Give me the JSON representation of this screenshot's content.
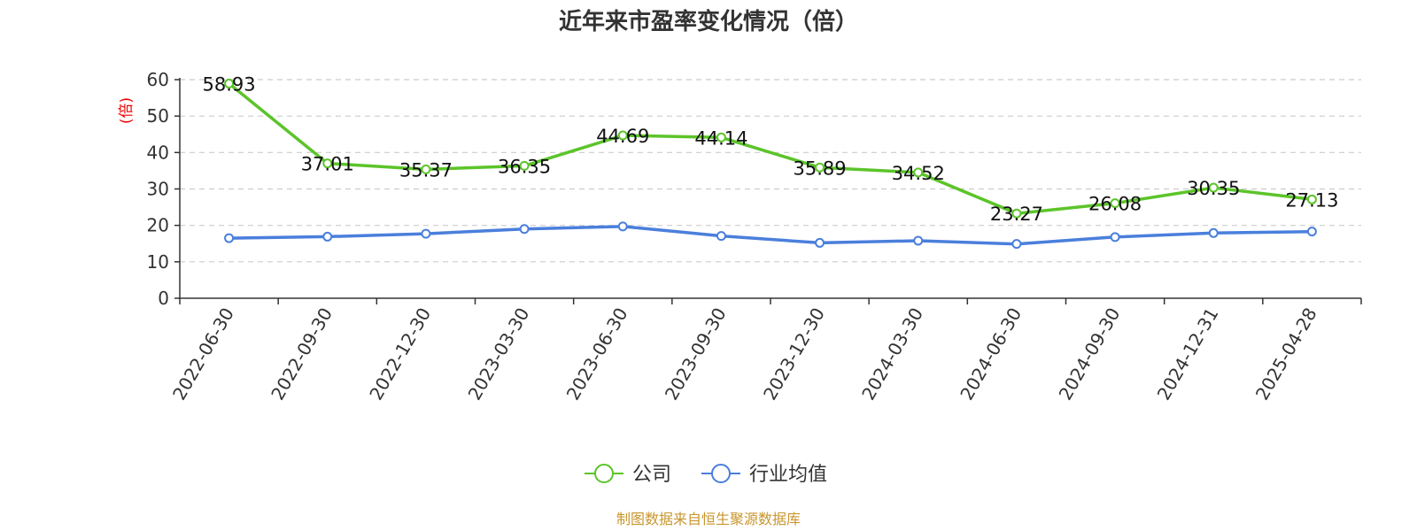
{
  "chart_data": {
    "type": "line",
    "title": "近年来市盈率变化情况（倍）",
    "ylabel": "(倍)",
    "ylim": [
      0,
      60
    ],
    "yticks": [
      0,
      10,
      20,
      30,
      40,
      50,
      60
    ],
    "grid": true,
    "legend_position": "bottom",
    "categories": [
      "2022-06-30",
      "2022-09-30",
      "2022-12-30",
      "2023-03-30",
      "2023-06-30",
      "2023-09-30",
      "2023-12-30",
      "2024-03-30",
      "2024-06-30",
      "2024-09-30",
      "2024-12-31",
      "2025-04-28"
    ],
    "series": [
      {
        "name": "公司",
        "color": "#5cc42a",
        "show_labels": true,
        "values": [
          58.93,
          37.01,
          35.37,
          36.35,
          44.69,
          44.14,
          35.89,
          34.52,
          23.27,
          26.08,
          30.35,
          27.13
        ],
        "labels": [
          "58.93",
          "37.01",
          "35.37",
          "36.35",
          "44.69",
          "44.14",
          "35.89",
          "34.52",
          "23.27",
          "26.08",
          "30.35",
          "27.13"
        ]
      },
      {
        "name": "行业均值",
        "color": "#4a7fdc",
        "show_labels": false,
        "values": [
          16.5,
          16.9,
          17.7,
          19.0,
          19.7,
          17.1,
          15.2,
          15.8,
          14.9,
          16.8,
          17.9,
          18.3
        ]
      }
    ]
  },
  "footer": {
    "source": "制图数据来自恒生聚源数据库"
  }
}
